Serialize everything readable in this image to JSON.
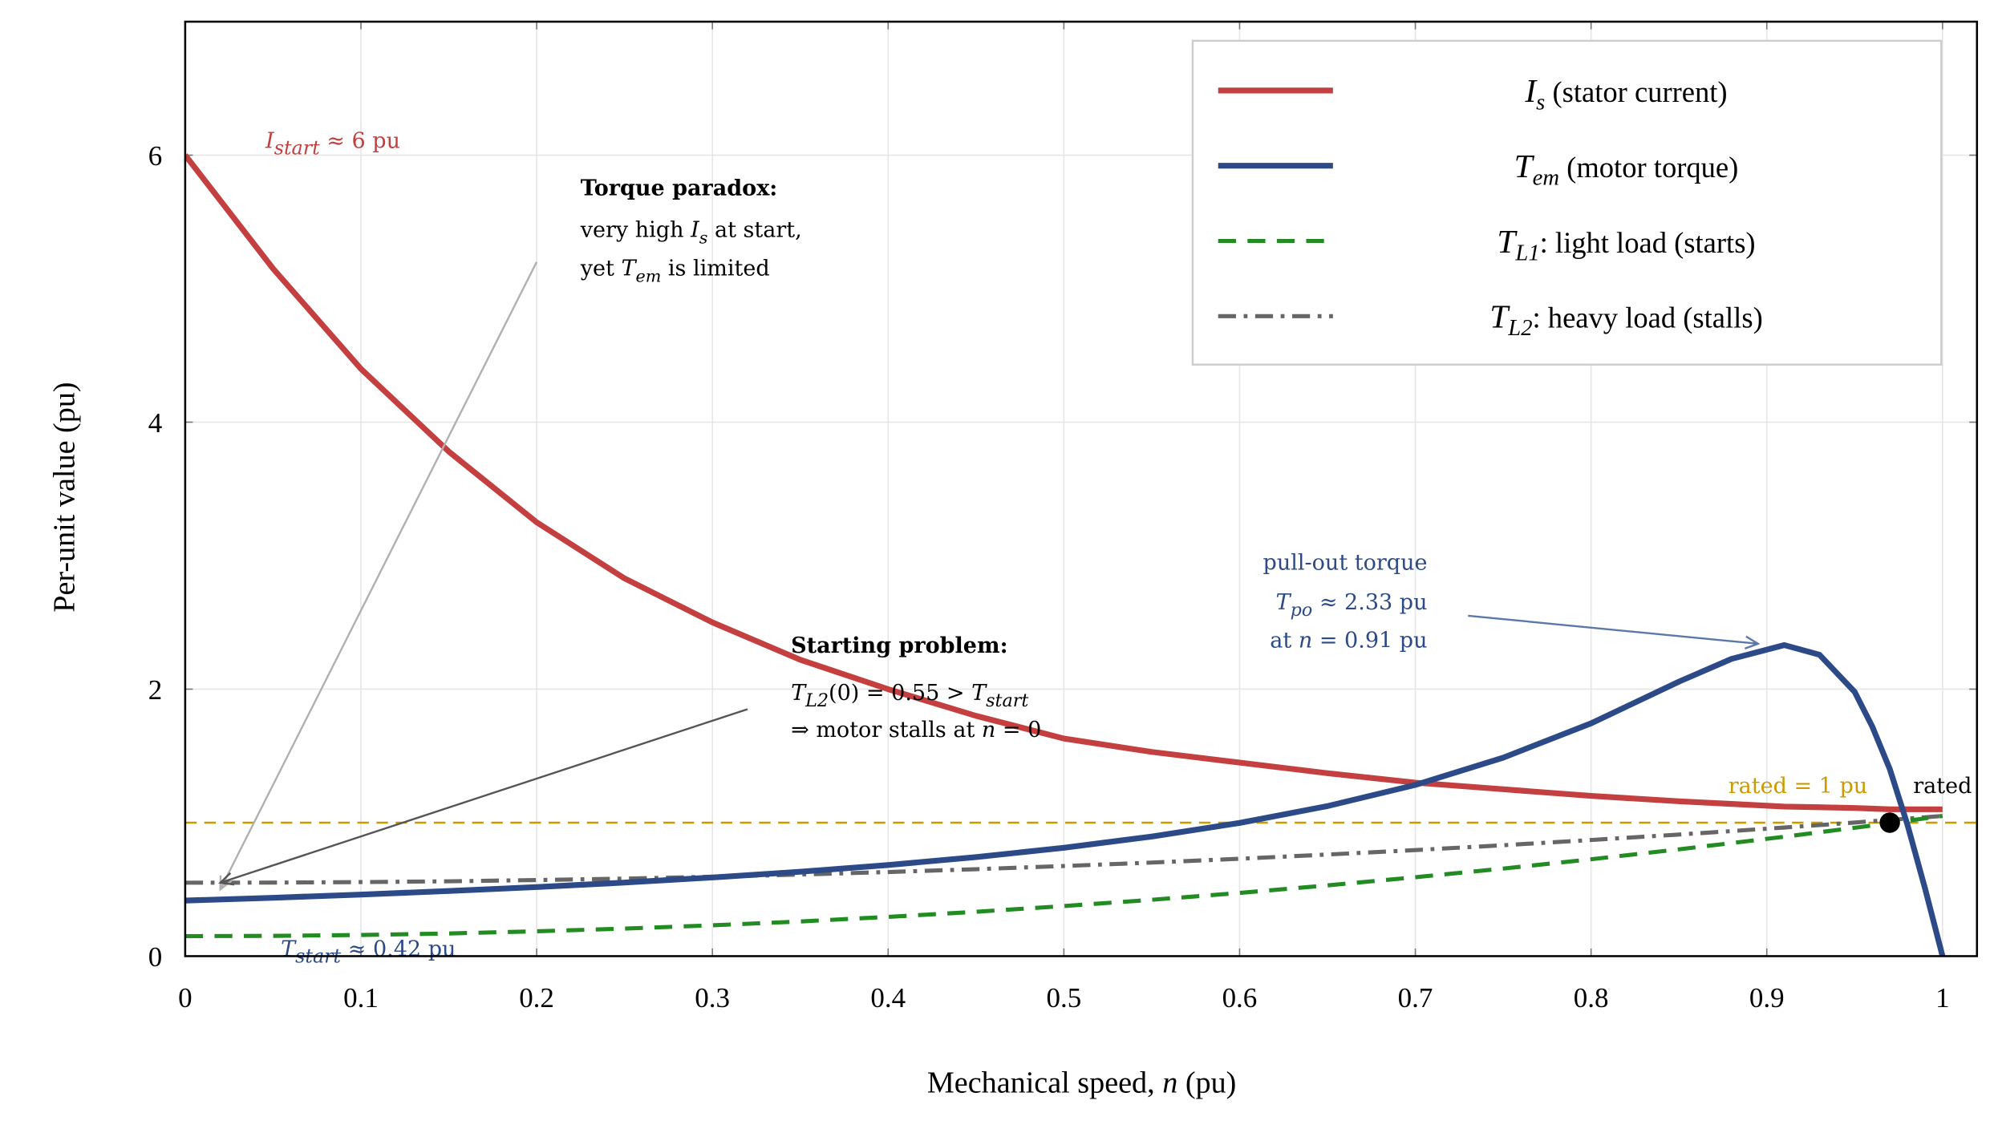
{
  "chart_data": {
    "type": "line",
    "xlabel": "Mechanical speed, n (pu)",
    "xlabel_parts": {
      "pre": "Mechanical speed, ",
      "var": "n",
      "post": " (pu)"
    },
    "ylabel": "Per-unit value (pu)",
    "xlim": [
      0,
      1.02
    ],
    "ylim": [
      0,
      7
    ],
    "x_ticks": [
      "0",
      "0.1",
      "0.2",
      "0.3",
      "0.4",
      "0.5",
      "0.6",
      "0.7",
      "0.8",
      "0.9",
      "1"
    ],
    "x_tick_values": [
      0,
      0.1,
      0.2,
      0.3,
      0.4,
      0.5,
      0.6,
      0.7,
      0.8,
      0.9,
      1
    ],
    "y_ticks": [
      "0",
      "2",
      "4",
      "6"
    ],
    "y_tick_values": [
      0,
      2,
      4,
      6
    ],
    "grid": true,
    "legend_position": "top-right",
    "x": [
      0,
      0.05,
      0.1,
      0.15,
      0.2,
      0.25,
      0.3,
      0.35,
      0.4,
      0.45,
      0.5,
      0.55,
      0.6,
      0.65,
      0.7,
      0.75,
      0.8,
      0.85,
      0.88,
      0.91,
      0.93,
      0.95,
      0.96,
      0.97,
      0.98,
      0.99,
      1.0
    ],
    "series": [
      {
        "name": "I_s (stator current)",
        "legend": {
          "main": "I",
          "sub": "s",
          "rest": " (stator current)"
        },
        "color": "#c44040",
        "style": "solid",
        "values": [
          6.0,
          5.15,
          4.4,
          3.78,
          3.25,
          2.83,
          2.5,
          2.22,
          2.0,
          1.8,
          1.63,
          1.53,
          1.45,
          1.37,
          1.3,
          1.25,
          1.2,
          1.16,
          1.14,
          1.12,
          1.115,
          1.11,
          1.105,
          1.1,
          1.1,
          1.1,
          1.1
        ]
      },
      {
        "name": "T_em (motor torque)",
        "legend": {
          "main": "T",
          "sub": "em",
          "rest": " (motor torque)"
        },
        "color": "#2b4a87",
        "style": "solid",
        "values": [
          0.416,
          0.437,
          0.461,
          0.488,
          0.518,
          0.551,
          0.589,
          0.632,
          0.683,
          0.742,
          0.812,
          0.896,
          0.998,
          1.124,
          1.283,
          1.487,
          1.744,
          2.056,
          2.227,
          2.33,
          2.258,
          1.98,
          1.72,
          1.4,
          0.987,
          0.51,
          0.0
        ]
      },
      {
        "name": "T_L1: light load (starts)",
        "legend": {
          "main": "T",
          "sub": "L1",
          "rest": ": light load (starts)"
        },
        "color": "#228b22",
        "style": "dashed",
        "values": [
          0.15,
          0.152,
          0.159,
          0.17,
          0.186,
          0.206,
          0.231,
          0.26,
          0.294,
          0.332,
          0.375,
          0.422,
          0.474,
          0.53,
          0.591,
          0.656,
          0.726,
          0.8,
          0.847,
          0.895,
          0.928,
          0.962,
          0.979,
          0.997,
          1.014,
          1.032,
          1.05
        ]
      },
      {
        "name": "T_L2: heavy load (stalls)",
        "legend": {
          "main": "T",
          "sub": "L2",
          "rest": ": heavy load (stalls)"
        },
        "color": "#666666",
        "style": "dashdot",
        "values": [
          0.55,
          0.551,
          0.555,
          0.561,
          0.57,
          0.581,
          0.595,
          0.611,
          0.63,
          0.651,
          0.675,
          0.701,
          0.73,
          0.761,
          0.795,
          0.831,
          0.87,
          0.911,
          0.937,
          0.964,
          0.982,
          1.001,
          1.011,
          1.02,
          1.03,
          1.04,
          1.05
        ]
      }
    ],
    "reference_line": {
      "y": 1,
      "color": "#cc9900",
      "style": "dashed",
      "label": "rated = 1 pu"
    },
    "rated_point": {
      "x": 0.97,
      "y": 1.0,
      "color": "#000000",
      "label": "rated"
    },
    "annotations": {
      "i_start": {
        "main": "I",
        "sub": "start",
        "rest": " ≈ 6 pu",
        "color": "#c44040"
      },
      "t_start": {
        "main": "T",
        "sub": "start",
        "rest": " ≈ 0.42 pu",
        "color": "#2b4a87"
      },
      "torque_paradox": {
        "title": "Torque paradox:",
        "line2_pre": "very high ",
        "line2_var": "I",
        "line2_sub": "s",
        "line2_post": " at start,",
        "line3_pre": "yet ",
        "line3_var": "T",
        "line3_sub": "em",
        "line3_post": " is limited",
        "arrow_from": [
          0.2,
          5.2
        ],
        "arrow_to": [
          0.02,
          0.5
        ],
        "color": "#b0b0b0"
      },
      "starting_problem": {
        "title": "Starting problem:",
        "line2_var": "T",
        "line2_sub": "L2",
        "line2_mid": "(0) = 0.55 > ",
        "line2_var2": "T",
        "line2_sub2": "start",
        "line3_pre": "⇒ motor stalls at ",
        "line3_var": "n",
        "line3_post": " = 0",
        "arrow_from": [
          0.32,
          1.85
        ],
        "arrow_to": [
          0.02,
          0.55
        ],
        "color": "#555555"
      },
      "pull_out": {
        "line1": "pull-out torque",
        "line2_var": "T",
        "line2_sub": "po",
        "line2_post": " ≈ 2.33 pu",
        "line3_pre": "at ",
        "line3_var": "n",
        "line3_post": " = 0.91 pu",
        "arrow_from": [
          0.73,
          2.55
        ],
        "arrow_to": [
          0.895,
          2.34
        ],
        "color": "#5a78aa"
      }
    }
  }
}
